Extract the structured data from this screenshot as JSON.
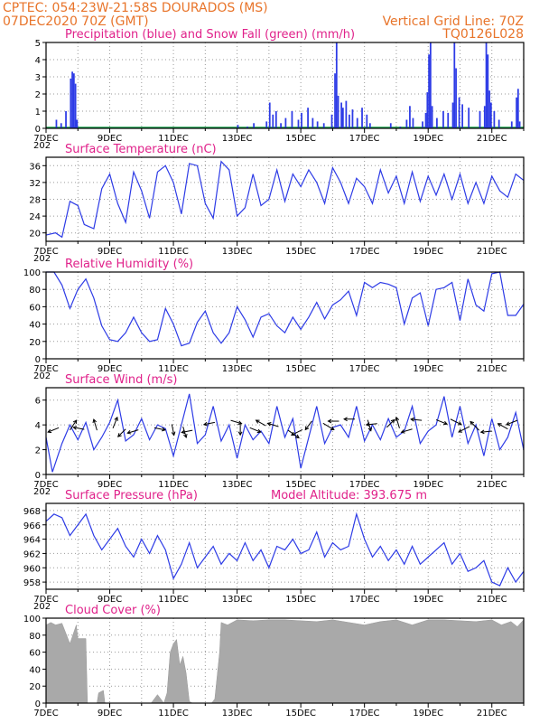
{
  "header": {
    "line1_left": "CPTEC:   054:23W-21:58S  DOURADOS (MS)",
    "line2_left": "07DEC2020 70Z (GMT)",
    "line2_right": "Vertical Grid Line: 70Z",
    "line3_right": "TQ0126L028"
  },
  "colors": {
    "header": "#e8742a",
    "title": "#e0218a",
    "line": "#2d3be6",
    "precip": "#2d3be6",
    "snow": "#16a34a",
    "cloud": "#a9a9a9"
  },
  "chart_data": [
    {
      "type": "bar",
      "title": "Precipitation (blue) and Snow Fall (green) (mm/h)",
      "x_tick_labels": [
        "7DEC",
        "9DEC",
        "11DEC",
        "13DEC",
        "15DEC",
        "17DEC",
        "19DEC",
        "21DEC"
      ],
      "x_tick_labels_truncated": [
        "202",
        "202",
        "202",
        "202",
        "202",
        "202"
      ],
      "x_range_days": [
        7,
        22
      ],
      "ylim": [
        0,
        5
      ],
      "y_ticks": [
        0,
        1,
        2,
        3,
        4,
        5
      ],
      "series": [
        {
          "name": "Precipitation",
          "points": [
            [
              7.3,
              0.5
            ],
            [
              7.45,
              0.3
            ],
            [
              7.6,
              1.0
            ],
            [
              7.75,
              2.9
            ],
            [
              7.8,
              3.3
            ],
            [
              7.85,
              3.2
            ],
            [
              7.9,
              2.6
            ],
            [
              7.95,
              0.5
            ],
            [
              13.0,
              0.2
            ],
            [
              13.3,
              0.1
            ],
            [
              13.5,
              0.3
            ],
            [
              13.9,
              0.4
            ],
            [
              14.0,
              1.5
            ],
            [
              14.1,
              0.8
            ],
            [
              14.2,
              1.0
            ],
            [
              14.35,
              0.3
            ],
            [
              14.5,
              0.6
            ],
            [
              14.7,
              1.0
            ],
            [
              14.9,
              0.5
            ],
            [
              15.0,
              0.9
            ],
            [
              15.2,
              1.2
            ],
            [
              15.35,
              0.6
            ],
            [
              15.5,
              0.4
            ],
            [
              15.7,
              0.3
            ],
            [
              15.95,
              0.8
            ],
            [
              16.05,
              3.2
            ],
            [
              16.1,
              5.0
            ],
            [
              16.15,
              1.9
            ],
            [
              16.25,
              1.5
            ],
            [
              16.3,
              1.2
            ],
            [
              16.4,
              1.6
            ],
            [
              16.5,
              0.8
            ],
            [
              16.6,
              1.1
            ],
            [
              16.75,
              0.6
            ],
            [
              16.9,
              1.2
            ],
            [
              17.05,
              0.8
            ],
            [
              17.15,
              0.3
            ],
            [
              17.8,
              0.3
            ],
            [
              18.1,
              0.1
            ],
            [
              18.3,
              0.5
            ],
            [
              18.4,
              1.3
            ],
            [
              18.5,
              0.6
            ],
            [
              18.8,
              0.4
            ],
            [
              18.9,
              0.9
            ],
            [
              18.95,
              2.1
            ],
            [
              19.0,
              4.3
            ],
            [
              19.05,
              5.0
            ],
            [
              19.1,
              1.3
            ],
            [
              19.25,
              0.6
            ],
            [
              19.45,
              1.0
            ],
            [
              19.6,
              0.9
            ],
            [
              19.75,
              1.5
            ],
            [
              19.8,
              5.0
            ],
            [
              19.85,
              3.5
            ],
            [
              19.95,
              1.8
            ],
            [
              20.05,
              1.4
            ],
            [
              20.25,
              1.2
            ],
            [
              20.6,
              1.0
            ],
            [
              20.75,
              1.3
            ],
            [
              20.8,
              5.0
            ],
            [
              20.85,
              4.3
            ],
            [
              20.9,
              2.2
            ],
            [
              20.95,
              1.5
            ],
            [
              21.05,
              1.0
            ],
            [
              21.2,
              0.5
            ],
            [
              21.6,
              0.4
            ],
            [
              21.75,
              1.8
            ],
            [
              21.8,
              2.3
            ],
            [
              21.85,
              0.4
            ]
          ]
        },
        {
          "name": "Snow Fall",
          "values_note": "0 throughout"
        }
      ]
    },
    {
      "type": "line",
      "title": "Surface Temperature (nC)",
      "x_tick_labels": [
        "7DEC",
        "9DEC",
        "11DEC",
        "13DEC",
        "15DEC",
        "17DEC",
        "19DEC",
        "21DEC"
      ],
      "x_range_days": [
        7,
        22
      ],
      "ylim": [
        18,
        38
      ],
      "y_ticks": [
        20,
        24,
        28,
        32,
        36
      ],
      "x": [
        7.0,
        7.3,
        7.5,
        7.75,
        8.0,
        8.2,
        8.5,
        8.75,
        9.0,
        9.25,
        9.5,
        9.75,
        10.0,
        10.25,
        10.5,
        10.75,
        11.0,
        11.25,
        11.5,
        11.75,
        12.0,
        12.25,
        12.5,
        12.75,
        13.0,
        13.25,
        13.5,
        13.75,
        14.0,
        14.25,
        14.5,
        14.75,
        15.0,
        15.25,
        15.5,
        15.75,
        16.0,
        16.25,
        16.5,
        16.75,
        17.0,
        17.25,
        17.5,
        17.75,
        18.0,
        18.25,
        18.5,
        18.75,
        19.0,
        19.25,
        19.5,
        19.75,
        20.0,
        20.25,
        20.5,
        20.75,
        21.0,
        21.25,
        21.5,
        21.75,
        22.0
      ],
      "values": [
        19.5,
        20.0,
        19.0,
        27.5,
        26.5,
        22.0,
        21.0,
        30.5,
        34.0,
        27.0,
        22.5,
        34.5,
        30.0,
        23.5,
        34.5,
        36.0,
        32.0,
        24.5,
        36.5,
        36.0,
        27.0,
        23.5,
        37.0,
        35.0,
        24.0,
        26.0,
        34.0,
        26.5,
        28.0,
        35.0,
        27.5,
        34.0,
        31.0,
        35.0,
        32.0,
        27.0,
        35.5,
        32.0,
        27.0,
        33.0,
        31.0,
        27.0,
        35.0,
        29.5,
        33.5,
        27.0,
        34.5,
        27.5,
        33.5,
        29.0,
        34.0,
        28.0,
        34.0,
        27.0,
        32.0,
        27.0,
        33.5,
        30.0,
        28.5,
        34.0,
        32.5
      ]
    },
    {
      "type": "line",
      "title": "Relative Humidity (%)",
      "x_tick_labels": [
        "7DEC",
        "9DEC",
        "11DEC",
        "13DEC",
        "15DEC",
        "17DEC",
        "19DEC",
        "21DEC"
      ],
      "x_range_days": [
        7,
        22
      ],
      "ylim": [
        0,
        100
      ],
      "y_ticks": [
        0,
        20,
        40,
        60,
        80,
        100
      ],
      "x": [
        7.0,
        7.25,
        7.5,
        7.75,
        8.0,
        8.25,
        8.5,
        8.75,
        9.0,
        9.25,
        9.5,
        9.75,
        10.0,
        10.25,
        10.5,
        10.75,
        11.0,
        11.25,
        11.5,
        11.75,
        12.0,
        12.25,
        12.5,
        12.75,
        13.0,
        13.25,
        13.5,
        13.75,
        14.0,
        14.25,
        14.5,
        14.75,
        15.0,
        15.25,
        15.5,
        15.75,
        16.0,
        16.25,
        16.5,
        16.75,
        17.0,
        17.25,
        17.5,
        17.75,
        18.0,
        18.25,
        18.5,
        18.75,
        19.0,
        19.25,
        19.5,
        19.75,
        20.0,
        20.25,
        20.5,
        20.75,
        21.0,
        21.25,
        21.5,
        21.75,
        22.0
      ],
      "values": [
        100,
        100,
        85,
        58,
        80,
        92,
        70,
        38,
        22,
        20,
        30,
        48,
        30,
        20,
        22,
        58,
        40,
        15,
        18,
        42,
        55,
        30,
        18,
        30,
        60,
        45,
        25,
        48,
        52,
        38,
        30,
        48,
        34,
        48,
        65,
        46,
        62,
        68,
        78,
        50,
        88,
        82,
        88,
        86,
        82,
        40,
        70,
        76,
        38,
        80,
        82,
        88,
        44,
        92,
        62,
        55,
        98,
        100,
        50,
        50,
        63
      ]
    },
    {
      "type": "line",
      "title": "Surface Wind (m/s)",
      "x_tick_labels": [
        "7DEC",
        "9DEC",
        "11DEC",
        "13DEC",
        "15DEC",
        "17DEC",
        "19DEC",
        "21DEC"
      ],
      "x_range_days": [
        7,
        22
      ],
      "ylim": [
        0,
        7
      ],
      "y_ticks": [
        0,
        2,
        4,
        6
      ],
      "x": [
        7.0,
        7.2,
        7.5,
        7.75,
        8.0,
        8.25,
        8.5,
        8.75,
        9.0,
        9.25,
        9.5,
        9.75,
        10.0,
        10.25,
        10.5,
        10.75,
        11.0,
        11.25,
        11.5,
        11.75,
        12.0,
        12.25,
        12.5,
        12.75,
        13.0,
        13.25,
        13.5,
        13.75,
        14.0,
        14.25,
        14.5,
        14.75,
        15.0,
        15.25,
        15.5,
        15.75,
        16.0,
        16.25,
        16.5,
        16.75,
        17.0,
        17.25,
        17.5,
        17.75,
        18.0,
        18.25,
        18.5,
        18.75,
        19.0,
        19.25,
        19.5,
        19.75,
        20.0,
        20.25,
        20.5,
        20.75,
        21.0,
        21.25,
        21.5,
        21.75,
        22.0
      ],
      "values": [
        3.0,
        0.2,
        2.5,
        4.0,
        2.8,
        4.2,
        2.0,
        3.0,
        4.2,
        6.0,
        2.7,
        3.2,
        4.5,
        2.8,
        4.0,
        3.7,
        1.5,
        4.0,
        6.5,
        2.5,
        3.2,
        5.5,
        2.7,
        4.0,
        1.3,
        4.0,
        2.8,
        3.5,
        2.5,
        5.5,
        3.0,
        4.5,
        0.5,
        3.0,
        5.5,
        2.5,
        3.8,
        4.0,
        3.0,
        5.5,
        2.7,
        4.0,
        2.8,
        4.5,
        3.0,
        3.5,
        5.5,
        2.5,
        3.5,
        4.0,
        6.3,
        3.0,
        5.5,
        2.5,
        4.0,
        1.5,
        4.5,
        2.0,
        3.0,
        5.0,
        2.0
      ]
    },
    {
      "type": "line",
      "title": "Surface Pressure (hPa)",
      "annotation": "Model Altitude: 393.675  m",
      "x_tick_labels": [
        "7DEC",
        "9DEC",
        "11DEC",
        "13DEC",
        "15DEC",
        "17DEC",
        "19DEC",
        "21DEC"
      ],
      "x_range_days": [
        7,
        22
      ],
      "ylim": [
        957,
        969
      ],
      "y_ticks": [
        958,
        960,
        962,
        964,
        966,
        968
      ],
      "x": [
        7.0,
        7.25,
        7.5,
        7.75,
        8.0,
        8.25,
        8.5,
        8.75,
        9.0,
        9.25,
        9.5,
        9.75,
        10.0,
        10.25,
        10.5,
        10.75,
        11.0,
        11.25,
        11.5,
        11.75,
        12.0,
        12.25,
        12.5,
        12.75,
        13.0,
        13.25,
        13.5,
        13.75,
        14.0,
        14.25,
        14.5,
        14.75,
        15.0,
        15.25,
        15.5,
        15.75,
        16.0,
        16.25,
        16.5,
        16.75,
        17.0,
        17.25,
        17.5,
        17.75,
        18.0,
        18.25,
        18.5,
        18.75,
        19.0,
        19.25,
        19.5,
        19.75,
        20.0,
        20.25,
        20.5,
        20.75,
        21.0,
        21.25,
        21.5,
        21.75,
        22.0
      ],
      "values": [
        966.5,
        967.5,
        967.0,
        964.5,
        966.0,
        967.5,
        964.5,
        962.5,
        964.0,
        965.5,
        963.0,
        961.5,
        964.0,
        962.0,
        964.5,
        962.5,
        958.5,
        960.5,
        963.5,
        960.0,
        961.5,
        963.0,
        960.5,
        962.0,
        961.0,
        963.5,
        961.0,
        962.5,
        960.0,
        963.0,
        962.5,
        964.0,
        962.0,
        962.5,
        965.0,
        961.5,
        963.5,
        962.5,
        963.0,
        967.5,
        964.0,
        961.5,
        963.0,
        961.0,
        962.5,
        960.5,
        963.0,
        960.5,
        961.5,
        962.5,
        963.5,
        960.5,
        962.0,
        959.5,
        960.0,
        961.0,
        958.0,
        957.5,
        960.0,
        958.0,
        959.5
      ]
    },
    {
      "type": "area",
      "title": "Cloud Cover (%)",
      "x_tick_labels": [
        "7DEC",
        "9DEC",
        "11DEC",
        "13DEC",
        "15DEC",
        "17DEC",
        "19DEC",
        "21DEC"
      ],
      "x_range_days": [
        7,
        22
      ],
      "ylim": [
        0,
        100
      ],
      "y_ticks": [
        0,
        20,
        40,
        60,
        80,
        100
      ],
      "x": [
        7.0,
        7.15,
        7.3,
        7.5,
        7.75,
        7.95,
        8.0,
        8.1,
        8.25,
        8.3,
        8.6,
        8.65,
        8.8,
        8.85,
        9.0,
        9.3,
        9.5,
        9.7,
        10.0,
        10.3,
        10.5,
        10.7,
        10.8,
        10.9,
        11.0,
        11.1,
        11.2,
        11.3,
        11.4,
        11.5,
        11.6,
        11.8,
        12.0,
        12.2,
        12.3,
        12.45,
        12.5,
        12.7,
        13.0,
        13.5,
        14.0,
        14.5,
        15.0,
        15.5,
        16.0,
        16.5,
        17.0,
        17.5,
        18.0,
        18.5,
        19.0,
        19.5,
        20.0,
        20.5,
        21.0,
        21.3,
        21.6,
        21.8,
        22.0
      ],
      "values": [
        92,
        95,
        92,
        94,
        70,
        92,
        76,
        76,
        76,
        0,
        0,
        12,
        15,
        0,
        0,
        0,
        0,
        0,
        0,
        0,
        10,
        0,
        12,
        60,
        70,
        75,
        45,
        55,
        35,
        2,
        0,
        0,
        0,
        0,
        5,
        60,
        95,
        92,
        98,
        97,
        98,
        98,
        97,
        96,
        98,
        95,
        92,
        96,
        98,
        92,
        98,
        98,
        97,
        96,
        98,
        92,
        96,
        90,
        98
      ]
    }
  ]
}
